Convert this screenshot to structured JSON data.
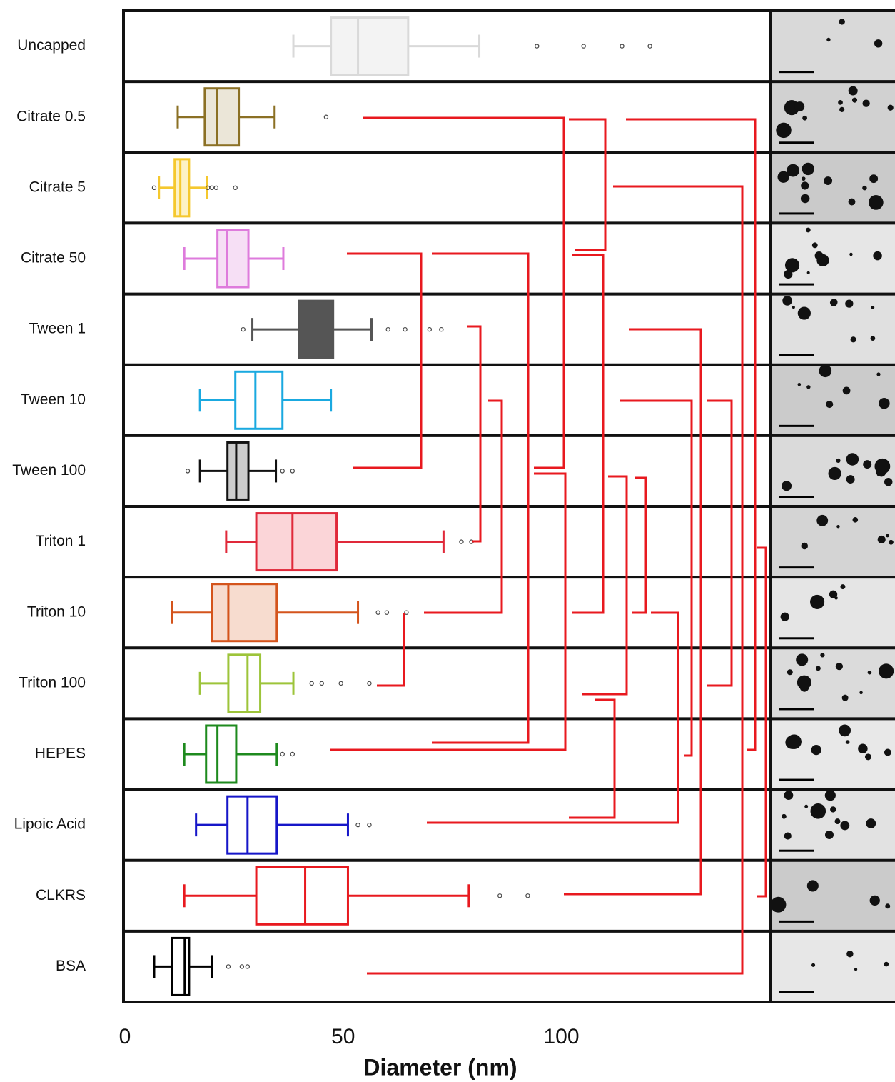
{
  "chart_data": {
    "type": "boxplot",
    "orientation": "horizontal",
    "xlabel": "Diameter (nm)",
    "xlim": [
      0,
      148
    ],
    "xticks": [
      0,
      50,
      100
    ],
    "categories": [
      "Uncapped",
      "Citrate 0.5",
      "Citrate 5",
      "Citrate 50",
      "Tween 1",
      "Tween 10",
      "Tween 100",
      "Triton 1",
      "Triton 10",
      "Triton 100",
      "HEPES",
      "Lipoic Acid",
      "CLKRS",
      "BSA"
    ],
    "boxes": [
      {
        "whisker_low": 38.6,
        "q1": 47.2,
        "median": 53.4,
        "q3": 64.9,
        "whisker_high": 81.2,
        "outliers": [
          94.4,
          105.1,
          113.9,
          120.3
        ],
        "color": "#d9d9d9",
        "fill": "#f3f3f3"
      },
      {
        "whisker_low": 12.1,
        "q1": 18.3,
        "median": 21.1,
        "q3": 26.1,
        "whisker_high": 34.3,
        "outliers": [
          46.1
        ],
        "color": "#8b7024",
        "fill": "#ebe6d8"
      },
      {
        "whisker_low": 7.8,
        "q1": 11.4,
        "median": 12.7,
        "q3": 14.7,
        "whisker_high": 18.8,
        "outliers": [
          6.7,
          19,
          19.9,
          20.9,
          25.3
        ],
        "color": "#f5c82e",
        "fill": "#fdf2c5"
      },
      {
        "whisker_low": 13.6,
        "q1": 21.2,
        "median": 23.4,
        "q3": 28.3,
        "whisker_high": 36.3,
        "outliers": [],
        "color": "#de7bdc",
        "fill": "#f6dff5"
      },
      {
        "whisker_low": 29.2,
        "q1": 39.9,
        "median": 43.8,
        "q3": 47.7,
        "whisker_high": 56.5,
        "outliers": [
          27.1,
          60.3,
          64.2,
          69.8,
          72.5
        ],
        "color": "#555555",
        "fill": "#555555"
      },
      {
        "whisker_low": 17.2,
        "q1": 25.3,
        "median": 29.9,
        "q3": 36.1,
        "whisker_high": 47.2,
        "outliers": [],
        "color": "#1aa9e0",
        "fill": "#ffffff"
      },
      {
        "whisker_low": 17.2,
        "q1": 23.5,
        "median": 25.5,
        "q3": 28.3,
        "whisker_high": 34.6,
        "outliers": [
          14.4,
          36.1,
          38.4
        ],
        "color": "#111111",
        "fill": "#cccccc"
      },
      {
        "whisker_low": 23.2,
        "q1": 30.1,
        "median": 38.4,
        "q3": 48.5,
        "whisker_high": 73,
        "outliers": [
          77.1,
          79.4
        ],
        "color": "#e0293a",
        "fill": "#fbd5d8"
      },
      {
        "whisker_low": 10.8,
        "q1": 19.9,
        "median": 23.7,
        "q3": 34.8,
        "whisker_high": 53.4,
        "outliers": [
          58,
          60,
          64.5
        ],
        "color": "#d4541c",
        "fill": "#f7dccf"
      },
      {
        "whisker_low": 17.2,
        "q1": 23.7,
        "median": 28.1,
        "q3": 31,
        "whisker_high": 38.6,
        "outliers": [
          42.8,
          45.1,
          49.5,
          56
        ],
        "color": "#9dc43a",
        "fill": "#ffffff"
      },
      {
        "whisker_low": 13.6,
        "q1": 18.6,
        "median": 21.2,
        "q3": 25.5,
        "whisker_high": 34.8,
        "outliers": [
          36.1,
          38.4
        ],
        "color": "#1e8a1e",
        "fill": "#ffffff"
      },
      {
        "whisker_low": 16.3,
        "q1": 23.5,
        "median": 28.1,
        "q3": 34.8,
        "whisker_high": 51.1,
        "outliers": [
          53.4,
          56
        ],
        "color": "#1616c8",
        "fill": "#ffffff"
      },
      {
        "whisker_low": 13.6,
        "q1": 30.1,
        "median": 41.3,
        "q3": 51.1,
        "whisker_high": 78.8,
        "outliers": [
          85.9,
          92.3
        ],
        "color": "#e8191f",
        "fill": "#ffffff"
      },
      {
        "whisker_low": 6.7,
        "q1": 10.8,
        "median": 13.7,
        "q3": 14.7,
        "whisker_high": 19.9,
        "outliers": [
          23.7,
          26.8,
          28.1
        ],
        "color": "#000000",
        "fill": "#ffffff"
      }
    ]
  }
}
